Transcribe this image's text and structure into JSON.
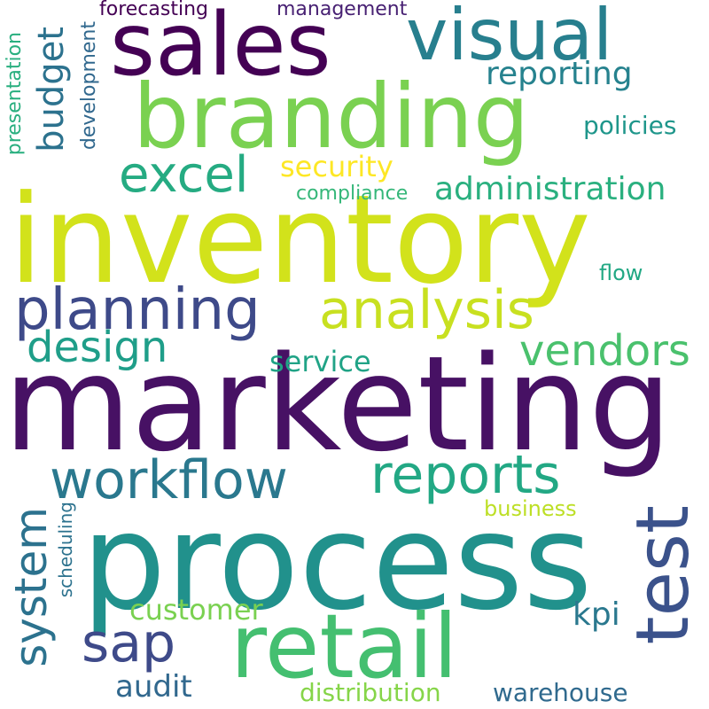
{
  "words": {
    "inventory": {
      "text": "inventory",
      "color": "#d2e21b"
    },
    "marketing": {
      "text": "marketing",
      "color": "#471164"
    },
    "process": {
      "text": "process",
      "color": "#21918c"
    },
    "sales": {
      "text": "sales",
      "color": "#440154"
    },
    "branding": {
      "text": "branding",
      "color": "#7ad151"
    },
    "visual": {
      "text": "visual",
      "color": "#277f8e"
    },
    "retail": {
      "text": "retail",
      "color": "#44bf70"
    },
    "test": {
      "text": "test",
      "color": "#3b528b"
    },
    "planning": {
      "text": "planning",
      "color": "#3e4a89"
    },
    "analysis": {
      "text": "analysis",
      "color": "#c8e020"
    },
    "workflow": {
      "text": "workflow",
      "color": "#2a788e"
    },
    "reports": {
      "text": "reports",
      "color": "#22a884"
    },
    "system": {
      "text": "system",
      "color": "#2c728e"
    },
    "excel": {
      "text": "excel",
      "color": "#25ab82"
    },
    "vendors": {
      "text": "vendors",
      "color": "#4ac16d"
    },
    "design": {
      "text": "design",
      "color": "#1f9e89"
    },
    "sap": {
      "text": "sap",
      "color": "#3e4a89"
    },
    "budget": {
      "text": "budget",
      "color": "#2c728e"
    },
    "administration": {
      "text": "administration",
      "color": "#2ab07f"
    },
    "reporting": {
      "text": "reporting",
      "color": "#26828e"
    },
    "policies": {
      "text": "policies",
      "color": "#1f968b"
    },
    "security": {
      "text": "security",
      "color": "#fde725"
    },
    "compliance": {
      "text": "compliance",
      "color": "#35b779"
    },
    "service": {
      "text": "service",
      "color": "#20a386"
    },
    "customer": {
      "text": "customer",
      "color": "#7ad151"
    },
    "business": {
      "text": "business",
      "color": "#bddf26"
    },
    "kpi": {
      "text": "kpi",
      "color": "#2a788e"
    },
    "audit": {
      "text": "audit",
      "color": "#31688e"
    },
    "distribution": {
      "text": "distribution",
      "color": "#86d549"
    },
    "warehouse": {
      "text": "warehouse",
      "color": "#306a8e"
    },
    "forecasting": {
      "text": "forecasting",
      "color": "#440154"
    },
    "management": {
      "text": "management",
      "color": "#482173"
    },
    "flow": {
      "text": "flow",
      "color": "#22a884"
    },
    "development": {
      "text": "development",
      "color": "#31688e"
    },
    "presentation": {
      "text": "presentation",
      "color": "#29af7f"
    },
    "scheduling": {
      "text": "scheduling",
      "color": "#2c728e"
    }
  }
}
